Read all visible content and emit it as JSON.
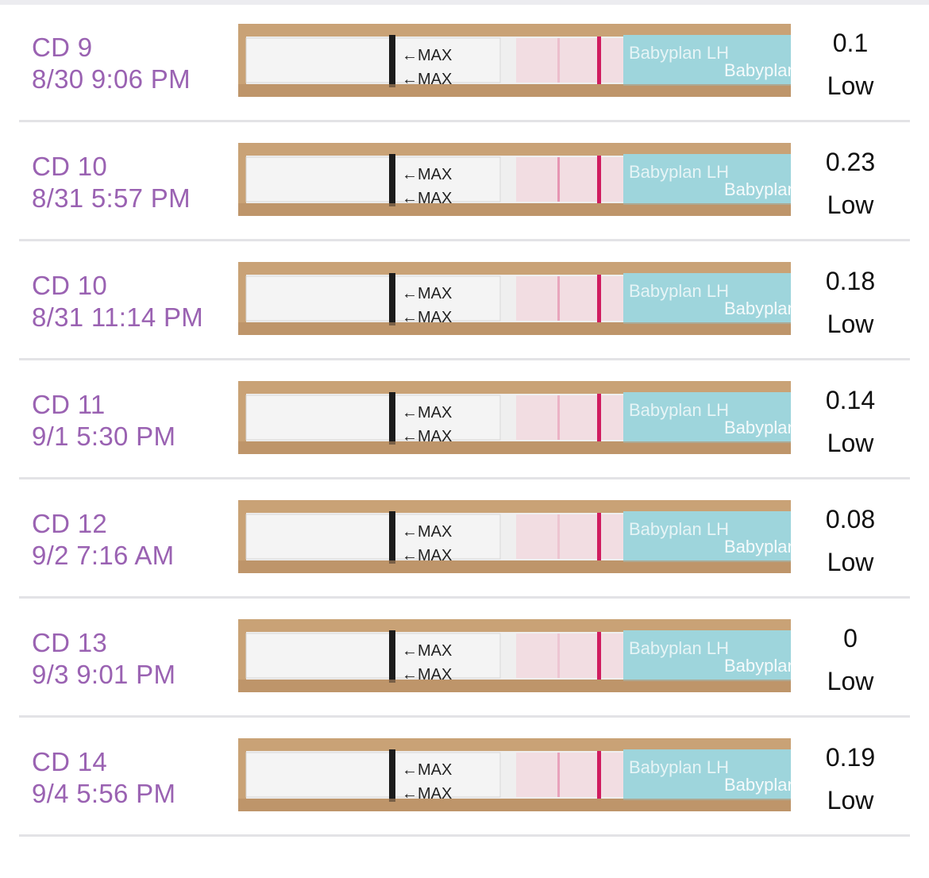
{
  "colors": {
    "accent_purple": "#9a62b2",
    "divider": "#e3e3e6",
    "test_line": "#d01c60",
    "brand_band": "#9ed5dc"
  },
  "strip_labels": {
    "max": "←MAX",
    "brand": "Babyplan",
    "lh": "LH"
  },
  "entries": [
    {
      "cycle_day": "CD 9",
      "datetime": "8/30 9:06 PM",
      "value": "0.1",
      "level": "Low",
      "test_line_intensity": 0.1
    },
    {
      "cycle_day": "CD 10",
      "datetime": "8/31 5:57 PM",
      "value": "0.23",
      "level": "Low",
      "test_line_intensity": 0.23
    },
    {
      "cycle_day": "CD 10",
      "datetime": "8/31 11:14 PM",
      "value": "0.18",
      "level": "Low",
      "test_line_intensity": 0.18
    },
    {
      "cycle_day": "CD 11",
      "datetime": "9/1 5:30 PM",
      "value": "0.14",
      "level": "Low",
      "test_line_intensity": 0.14
    },
    {
      "cycle_day": "CD 12",
      "datetime": "9/2 7:16 AM",
      "value": "0.08",
      "level": "Low",
      "test_line_intensity": 0.08
    },
    {
      "cycle_day": "CD 13",
      "datetime": "9/3 9:01 PM",
      "value": "0",
      "level": "Low",
      "test_line_intensity": 0.0
    },
    {
      "cycle_day": "CD 14",
      "datetime": "9/4 5:56 PM",
      "value": "0.19",
      "level": "Low",
      "test_line_intensity": 0.19
    }
  ]
}
